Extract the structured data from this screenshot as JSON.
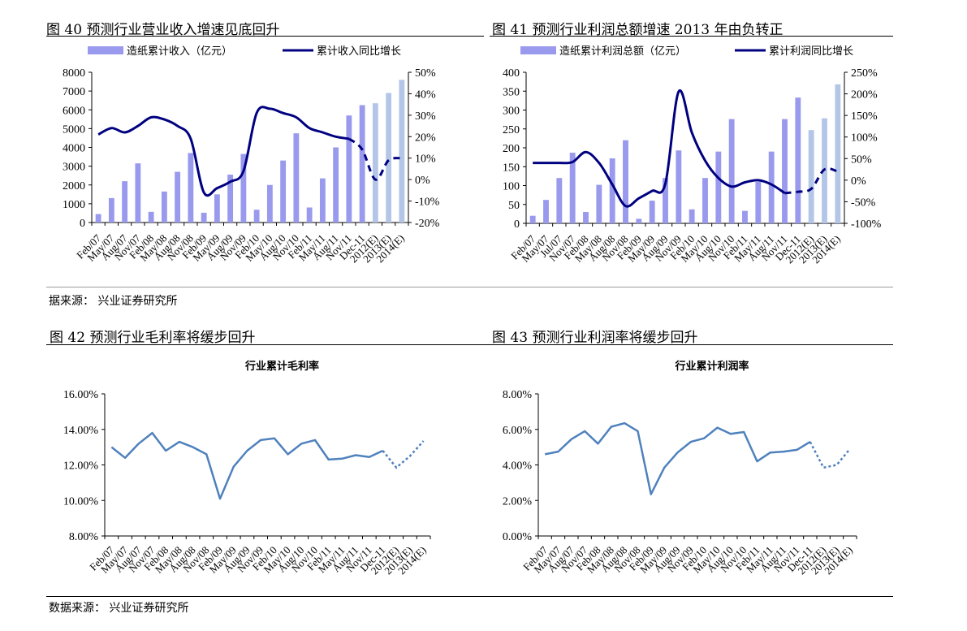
{
  "figures": [
    {
      "title": "图 40  预测行业营业收入增速见底回升"
    },
    {
      "title": "图  41  预测行业利润总额增速 2013 年由负转正"
    },
    {
      "title": "图 42 预测行业毛利率将缓步回升"
    },
    {
      "title": "图 43 预测行业利润率将缓步回升"
    }
  ],
  "sources": {
    "top": "据来源：  兴业证券研究所",
    "bottom": "数据来源：  兴业证券研究所"
  },
  "colors": {
    "bar": "#9999ee",
    "bar_forecast": "#b4c6e7",
    "line": "#000080",
    "line2": "#4f81bd"
  },
  "chart_data": [
    {
      "type": "bar",
      "categories": [
        "Feb/07",
        "May/07",
        "Aug/07",
        "Nov/07",
        "Feb/08",
        "May/08",
        "Aug/08",
        "Nov/08",
        "Feb/09",
        "May/09",
        "Aug/09",
        "Nov/09",
        "Feb/10",
        "May/10",
        "Aug/10",
        "Nov/10",
        "Feb/11",
        "May/11",
        "Aug/11",
        "Nov/11",
        "Dec-11",
        "2012(E)",
        "2013(E)",
        "2014(E)"
      ],
      "tick_labels": [
        "Feb/07",
        "May/07",
        "Aug/07",
        "Nov/07",
        "Feb/08",
        "May/08",
        "Aug/08",
        "Nov/08",
        "Feb/09",
        "May/09",
        "Aug/09",
        "Nov/09",
        "Feb/10",
        "May/10",
        "Aug/10",
        "Nov/10",
        "Feb/11",
        "May/11",
        "Aug/11",
        "Nov/11",
        "Dec-11",
        "2012(E)",
        "2013(E)",
        "2014(E)"
      ],
      "series": [
        {
          "name": "造纸累计收入（亿元）",
          "axis": "left",
          "values": [
            450,
            1300,
            2200,
            3150,
            570,
            1650,
            2700,
            3700,
            520,
            1500,
            2550,
            3650,
            680,
            2000,
            3300,
            4750,
            800,
            2350,
            4000,
            5700,
            6250,
            6350,
            6900,
            7600
          ],
          "forecast_from": 21
        },
        {
          "name": "累计收入同比增长",
          "axis": "right",
          "values": [
            21,
            24,
            22,
            25,
            29,
            28,
            25,
            19,
            -6,
            -4,
            -1,
            4,
            31,
            33,
            31,
            29,
            24,
            22,
            20,
            19,
            14,
            0,
            9,
            10
          ],
          "forecast_from": 20
        }
      ],
      "yticks_left": [
        "0",
        "1000",
        "2000",
        "3000",
        "4000",
        "5000",
        "6000",
        "7000",
        "8000"
      ],
      "yticks_right": [
        "-20%",
        "-10%",
        "0%",
        "10%",
        "20%",
        "30%",
        "40%",
        "50%"
      ],
      "ylim_left": [
        0,
        8000
      ],
      "ylim_right": [
        -20,
        50
      ],
      "legend": "top"
    },
    {
      "type": "bar",
      "categories": [
        "Feb/07",
        "May/07",
        "Jul/07",
        "Nov/07",
        "Feb/08",
        "May/08",
        "Aug/08",
        "Nov/08",
        "Feb/09",
        "May/09",
        "Aug/09",
        "Nov/09",
        "Feb/10",
        "May/10",
        "Aug/10",
        "Nov/10",
        "Feb/11",
        "May/11",
        "Aug/11",
        "Nov/11",
        "Dec-11",
        "2012(E)",
        "2013(E)",
        "2014(E)"
      ],
      "tick_labels": [
        "Feb/07",
        "May/07",
        "Jul/07",
        "Nov/07",
        "Feb/08",
        "May/08",
        "Aug/08",
        "Nov/08",
        "Feb/09",
        "May/09",
        "Aug/09",
        "Nov/09",
        "Feb/10",
        "May/10",
        "Aug/10",
        "Nov/10",
        "Feb/11",
        "May/11",
        "Aug/11",
        "Nov/11",
        "Dec-11",
        "2012(E)",
        "2013(E)",
        "2014(E)"
      ],
      "series": [
        {
          "name": "造纸累计利润总额（亿元）",
          "axis": "left",
          "values": [
            20,
            62,
            120,
            187,
            30,
            102,
            172,
            220,
            12,
            60,
            120,
            193,
            37,
            120,
            190,
            276,
            33,
            110,
            190,
            276,
            333,
            247,
            278,
            368
          ],
          "forecast_from": 21
        },
        {
          "name": "累计利润同比增长",
          "axis": "right",
          "values": [
            40,
            40,
            40,
            42,
            65,
            40,
            -10,
            -60,
            -42,
            -25,
            -8,
            205,
            110,
            45,
            5,
            -15,
            -5,
            0,
            -10,
            -30,
            -27,
            -20,
            25,
            20
          ],
          "forecast_from": 20
        }
      ],
      "yticks_left": [
        "0",
        "50",
        "100",
        "150",
        "200",
        "250",
        "300",
        "350",
        "400"
      ],
      "yticks_right": [
        "-100%",
        "-50%",
        "0%",
        "50%",
        "100%",
        "150%",
        "200%",
        "250%"
      ],
      "ylim_left": [
        0,
        400
      ],
      "ylim_right": [
        -100,
        250
      ],
      "legend": "top"
    },
    {
      "type": "line",
      "title": "行业累计毛利率",
      "categories": [
        "Feb/07",
        "May/07",
        "Aug/07",
        "Nov/07",
        "Feb/08",
        "May/08",
        "Aug/08",
        "Nov/08",
        "Feb/09",
        "May/09",
        "Aug/09",
        "Nov/09",
        "Feb/10",
        "May/10",
        "Aug/10",
        "Nov/10",
        "Feb/11",
        "May/11",
        "Aug/11",
        "Nov/11",
        "Dec-11",
        "2012(E)",
        "2013(E)",
        "2014(E)"
      ],
      "tick_labels": [
        "Feb/07",
        "May/07",
        "Aug/07",
        "Nov/07",
        "Feb/08",
        "May/08",
        "Aug/08",
        "Nov/08",
        "Feb/09",
        "May/09",
        "Aug/09",
        "Nov/09",
        "Feb/10",
        "May/10",
        "Aug/10",
        "Nov/10",
        "Feb/11",
        "May/11",
        "Aug/11",
        "Nov/11",
        "Dec-11",
        "2012(E)",
        "2013(E)",
        "2014(E)"
      ],
      "series": [
        {
          "values": [
            13.0,
            12.4,
            13.2,
            13.8,
            12.8,
            13.3,
            13.0,
            12.6,
            10.1,
            11.9,
            12.8,
            13.4,
            13.5,
            12.6,
            13.2,
            13.4,
            12.3,
            12.35,
            12.55,
            12.45,
            12.8,
            11.85,
            12.5,
            13.35
          ],
          "forecast_from": 20
        }
      ],
      "yticks": [
        "8.00%",
        "10.00%",
        "12.00%",
        "14.00%",
        "16.00%"
      ],
      "ylim": [
        8,
        16
      ]
    },
    {
      "type": "line",
      "title": "行业累计利润率",
      "categories": [
        "Feb/07",
        "May/07",
        "Aug/07",
        "Nov/07",
        "Feb/08",
        "May/08",
        "Aug/08",
        "Nov/08",
        "Feb/09",
        "May/09",
        "Aug/09",
        "Nov/09",
        "Feb/10",
        "May/10",
        "Aug/10",
        "Nov/10",
        "Feb/11",
        "May/11",
        "Aug/11",
        "Nov/11",
        "Dec-11",
        "2012(E)",
        "2013(E)",
        "2014(E)"
      ],
      "tick_labels": [
        "Feb/07",
        "May/07",
        "Aug/07",
        "Nov/07",
        "Feb/08",
        "May/08",
        "Aug/08",
        "Nov/08",
        "Feb/09",
        "May/09",
        "Aug/09",
        "Nov/09",
        "Feb/10",
        "May/10",
        "Aug/10",
        "Nov/10",
        "Feb/11",
        "May/11",
        "Aug/11",
        "Nov/11",
        "Dec-11",
        "2012(E)",
        "2013(E)",
        "2014(E)"
      ],
      "series": [
        {
          "values": [
            4.6,
            4.75,
            5.45,
            5.9,
            5.2,
            6.15,
            6.35,
            5.9,
            2.35,
            3.85,
            4.7,
            5.3,
            5.5,
            6.1,
            5.75,
            5.85,
            4.2,
            4.7,
            4.75,
            4.85,
            5.3,
            3.85,
            4.0,
            4.9
          ],
          "forecast_from": 20
        }
      ],
      "yticks": [
        "0.00%",
        "2.00%",
        "4.00%",
        "6.00%",
        "8.00%"
      ],
      "ylim": [
        0,
        8
      ]
    }
  ]
}
